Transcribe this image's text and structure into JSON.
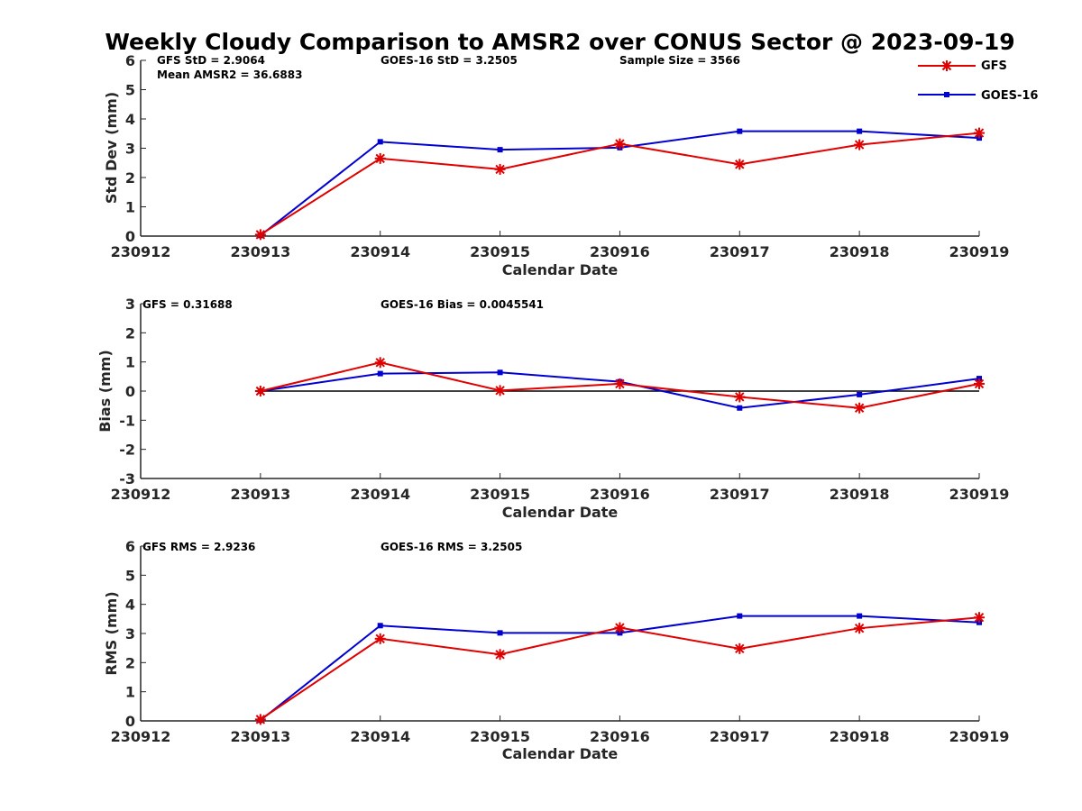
{
  "chart_data": {
    "type": "line",
    "title": "Weekly Cloudy Comparison to AMSR2 over CONUS Sector @ 2023-09-19",
    "x_ticks": [
      "230912",
      "230913",
      "230914",
      "230915",
      "230916",
      "230917",
      "230918",
      "230919"
    ],
    "legend": {
      "placement": "top-right",
      "entries": [
        {
          "name": "GFS",
          "color": "#e00000",
          "marker": "asterisk"
        },
        {
          "name": "GOES-16",
          "color": "#0000d0",
          "marker": "square"
        }
      ]
    },
    "panels": [
      {
        "ylabel": "Std Dev (mm)",
        "xlabel": "Calendar Date",
        "ylim": [
          0,
          6
        ],
        "yticks": [
          0,
          1,
          2,
          3,
          4,
          5,
          6
        ],
        "zero_line": false,
        "annotations": [
          "GFS StD = 2.9064",
          "Mean AMSR2 = 36.6883",
          "GOES-16 StD = 3.2505",
          "Sample Size = 3566"
        ],
        "series": [
          {
            "name": "GFS",
            "values": [
              0.05,
              2.65,
              2.28,
              3.15,
              2.45,
              3.12,
              3.52
            ]
          },
          {
            "name": "GOES-16",
            "values": [
              0.02,
              3.22,
              2.95,
              3.02,
              3.58,
              3.58,
              3.35
            ]
          }
        ]
      },
      {
        "ylabel": "Bias (mm)",
        "xlabel": "Calendar Date",
        "ylim": [
          -3,
          3
        ],
        "yticks": [
          -3,
          -2,
          -1,
          0,
          1,
          2,
          3
        ],
        "zero_line": true,
        "annotations": [
          "GFS = 0.31688",
          "GOES-16 Bias  = 0.0045541"
        ],
        "series": [
          {
            "name": "GFS",
            "values": [
              0.0,
              0.98,
              0.02,
              0.25,
              -0.2,
              -0.58,
              0.25
            ]
          },
          {
            "name": "GOES-16",
            "values": [
              0.0,
              0.6,
              0.64,
              0.32,
              -0.58,
              -0.12,
              0.43
            ]
          }
        ]
      },
      {
        "ylabel": "RMS (mm)",
        "xlabel": "Calendar Date",
        "ylim": [
          0,
          6
        ],
        "yticks": [
          0,
          1,
          2,
          3,
          4,
          5,
          6
        ],
        "zero_line": false,
        "annotations": [
          "GFS RMS = 2.9236",
          "GOES-16 RMS = 3.2505"
        ],
        "series": [
          {
            "name": "GFS",
            "values": [
              0.05,
              2.82,
              2.28,
              3.2,
              2.48,
              3.18,
              3.55
            ]
          },
          {
            "name": "GOES-16",
            "values": [
              0.02,
              3.27,
              3.02,
              3.02,
              3.6,
              3.6,
              3.38
            ]
          }
        ]
      }
    ]
  }
}
